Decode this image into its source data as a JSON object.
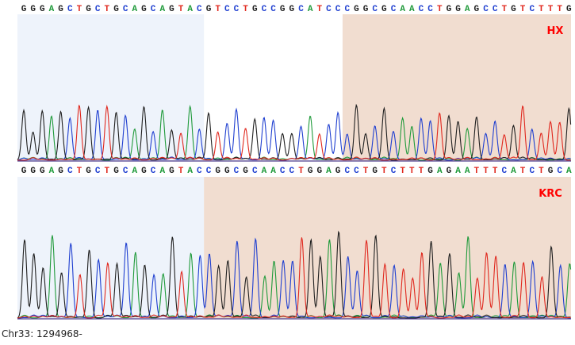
{
  "colors": {
    "A": "#1f9a3a",
    "C": "#1f3fd0",
    "G": "#202020",
    "T": "#e0281e",
    "highlight_blue": "#eef3fb",
    "highlight_tan": "#f1ddd0",
    "baseline": "#4a3a8a"
  },
  "panels": [
    {
      "id": "top",
      "label": "HX",
      "sequence": "GGGAGCTGCTGCAGCAGTACGTCCTGCCGGCATCCCGGCGCAACCTGGAGCCTGTCTTTG",
      "highlight_blue_bases": [
        0,
        19
      ],
      "highlight_tan_bases": [
        35,
        59
      ]
    },
    {
      "id": "bottom",
      "label": "KRC",
      "sequence": "GGGAGCTGCTGCAGCAGTACCGGCGCAACCTGGAGCCTGTCTTTGAGAATTTCATCTGCA",
      "highlight_blue_bases": [
        0,
        19
      ],
      "highlight_tan_bases": [
        20,
        59
      ]
    }
  ],
  "footer": {
    "coordinate": "Chr33: 1294968-"
  }
}
